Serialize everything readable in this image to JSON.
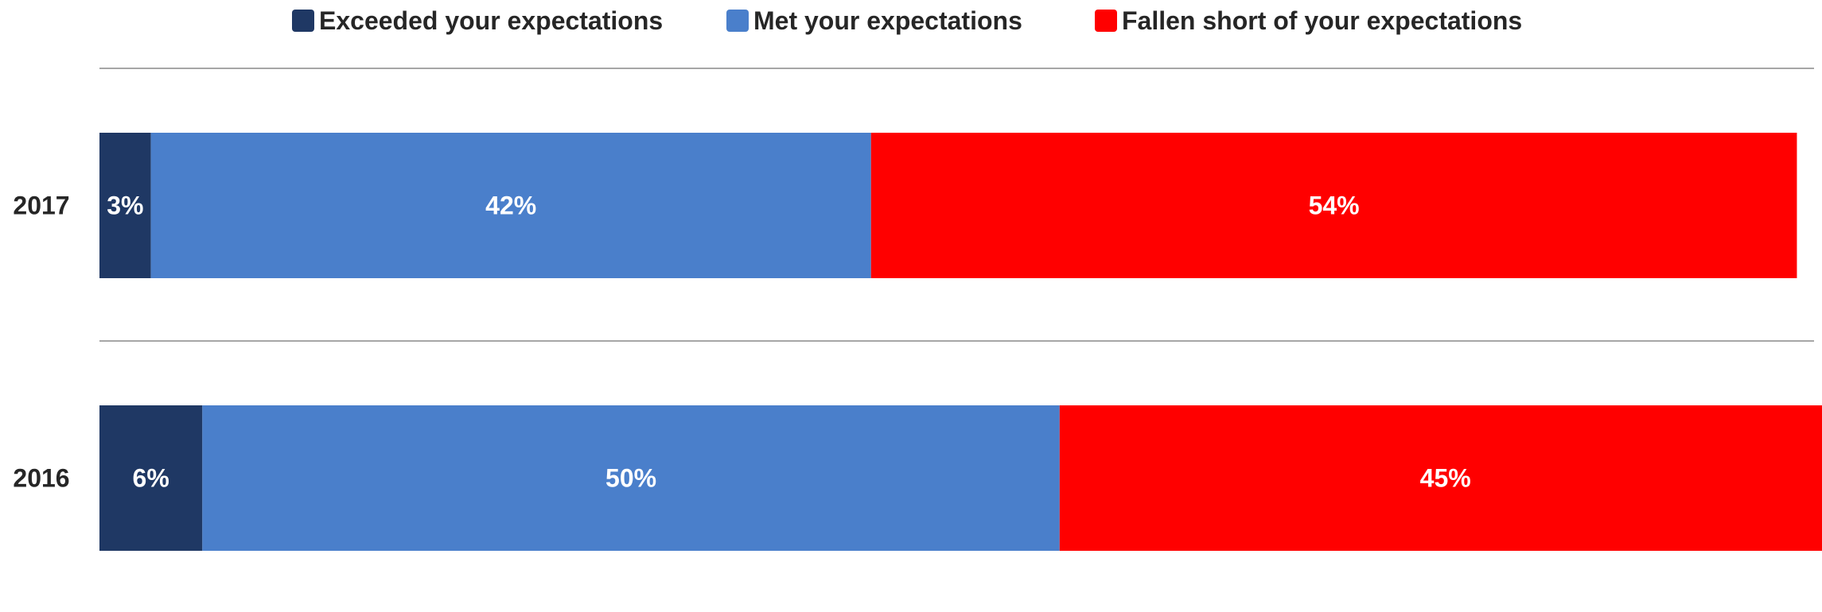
{
  "chart_data": {
    "type": "bar",
    "orientation": "horizontal",
    "stacked": true,
    "categories": [
      "2017",
      "2016"
    ],
    "series": [
      {
        "name": "Exceeded your expectations",
        "color": "#1f3864",
        "values": [
          3,
          6
        ],
        "labels": [
          "3%",
          "6%"
        ]
      },
      {
        "name": "Met your expectations",
        "color": "#4a7fcb",
        "values": [
          42,
          50
        ],
        "labels": [
          "42%",
          "50%"
        ]
      },
      {
        "name": "Fallen short of your expectations",
        "color": "#ff0000",
        "values": [
          54,
          45
        ],
        "labels": [
          "54%",
          "45%"
        ]
      }
    ],
    "xlim": [
      0,
      100
    ],
    "legend_position": "top",
    "grid": true
  }
}
